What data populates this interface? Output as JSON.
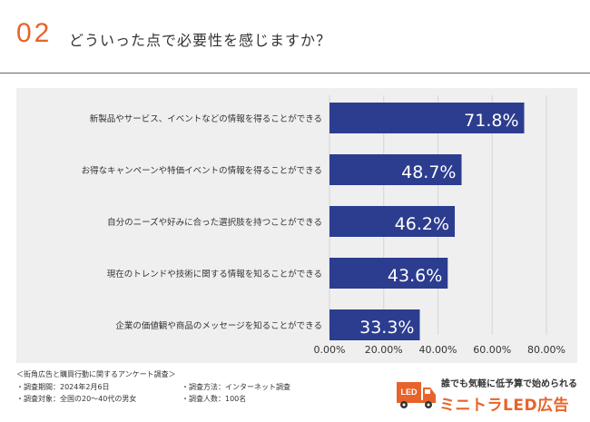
{
  "header": {
    "number": "02",
    "title": "どういった点で必要性を感じますか？"
  },
  "colors": {
    "accent": "#e8632a",
    "bar": "#2c3d8f",
    "panel": "#efefef",
    "grid": "#d6d6d6"
  },
  "chart_data": {
    "type": "bar",
    "orientation": "horizontal",
    "categories": [
      "新製品やサービス、イベントなどの情報を得ることができる",
      "お得なキャンペーンや特価イベントの情報を得ることができる",
      "自分のニーズや好みに合った選択肢を持つことができる",
      "現在のトレンドや技術に関する情報を知ることができる",
      "企業の価値観や商品のメッセージを知ることができる"
    ],
    "values": [
      71.8,
      48.7,
      46.2,
      43.6,
      33.3
    ],
    "value_labels": [
      "71.8%",
      "48.7%",
      "46.2%",
      "43.6%",
      "33.3%"
    ],
    "x_ticks": [
      0,
      20,
      40,
      60,
      80
    ],
    "x_tick_labels": [
      "0.00%",
      "20.00%",
      "40.00%",
      "60.00%",
      "80.00%"
    ],
    "xlim": [
      0,
      80
    ],
    "grid": true,
    "title": "",
    "xlabel": "",
    "ylabel": ""
  },
  "footer": {
    "survey_name": "＜街角広告と購買行動に関するアンケート調査＞",
    "date": "・調査期間：2024年2月6日",
    "method": "・調査方法：インターネット調査",
    "target": "・調査対象：全国の20～40代の男女",
    "count": "・調査人数：100名"
  },
  "logo": {
    "badge": "LED",
    "tagline": "誰でも気軽に低予算で始められる",
    "name": "ミニトラLED広告"
  }
}
